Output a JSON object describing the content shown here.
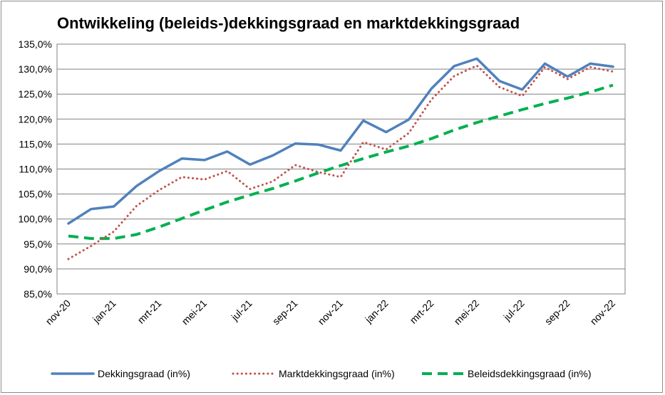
{
  "chart_data": {
    "type": "line",
    "title": "Ontwikkeling (beleids-)dekkingsgraad en marktdekkingsgraad",
    "xlabel": "",
    "ylabel": "",
    "ylim": [
      85,
      135
    ],
    "ytick_values": [
      85,
      90,
      95,
      100,
      105,
      110,
      115,
      120,
      125,
      130,
      135
    ],
    "ytick_labels": [
      "85,0%",
      "90,0%",
      "95,0%",
      "100,0%",
      "105,0%",
      "110,0%",
      "115,0%",
      "120,0%",
      "125,0%",
      "130,0%",
      "135,0%"
    ],
    "x": [
      "nov-20",
      "dec-20",
      "jan-21",
      "feb-21",
      "mrt-21",
      "apr-21",
      "mei-21",
      "jun-21",
      "jul-21",
      "aug-21",
      "sep-21",
      "okt-21",
      "nov-21",
      "dec-21",
      "jan-22",
      "feb-22",
      "mrt-22",
      "apr-22",
      "mei-22",
      "jun-22",
      "jul-22",
      "aug-22",
      "sep-22",
      "okt-22",
      "nov-22"
    ],
    "xtick_labels": [
      "nov-20",
      "jan-21",
      "mrt-21",
      "mei-21",
      "jul-21",
      "sep-21",
      "nov-21",
      "jan-22",
      "mrt-22",
      "mei-22",
      "jul-22",
      "sep-22",
      "nov-22"
    ],
    "grid": true,
    "legend_position": "bottom",
    "series": [
      {
        "name": "Dekkingsgraad (in%)",
        "color": "#4F81BD",
        "style": "solid",
        "values": [
          99.1,
          102.0,
          102.5,
          106.6,
          109.6,
          112.1,
          111.8,
          113.5,
          110.9,
          112.7,
          115.1,
          114.9,
          113.7,
          119.7,
          117.4,
          119.9,
          126.1,
          130.6,
          132.1,
          127.6,
          125.9,
          131.1,
          128.5,
          131.1,
          130.5
        ]
      },
      {
        "name": "Marktdekkingsgraad (in%)",
        "color": "#C0504D",
        "style": "dotted",
        "values": [
          92.0,
          94.6,
          97.5,
          102.6,
          105.8,
          108.4,
          107.9,
          109.6,
          106.0,
          107.5,
          110.8,
          109.4,
          108.4,
          115.4,
          113.9,
          117.2,
          123.9,
          128.6,
          130.7,
          126.4,
          124.6,
          130.4,
          128.0,
          130.4,
          129.5
        ]
      },
      {
        "name": "Beleidsdekkingsgraad (in%)",
        "color": "#00B050",
        "style": "dashed",
        "values": [
          96.6,
          96.1,
          96.1,
          96.9,
          98.4,
          100.1,
          101.8,
          103.4,
          104.8,
          106.1,
          107.6,
          109.2,
          110.7,
          112.1,
          113.4,
          114.6,
          116.1,
          117.8,
          119.3,
          120.6,
          121.9,
          123.1,
          124.2,
          125.4,
          126.8
        ]
      }
    ]
  }
}
